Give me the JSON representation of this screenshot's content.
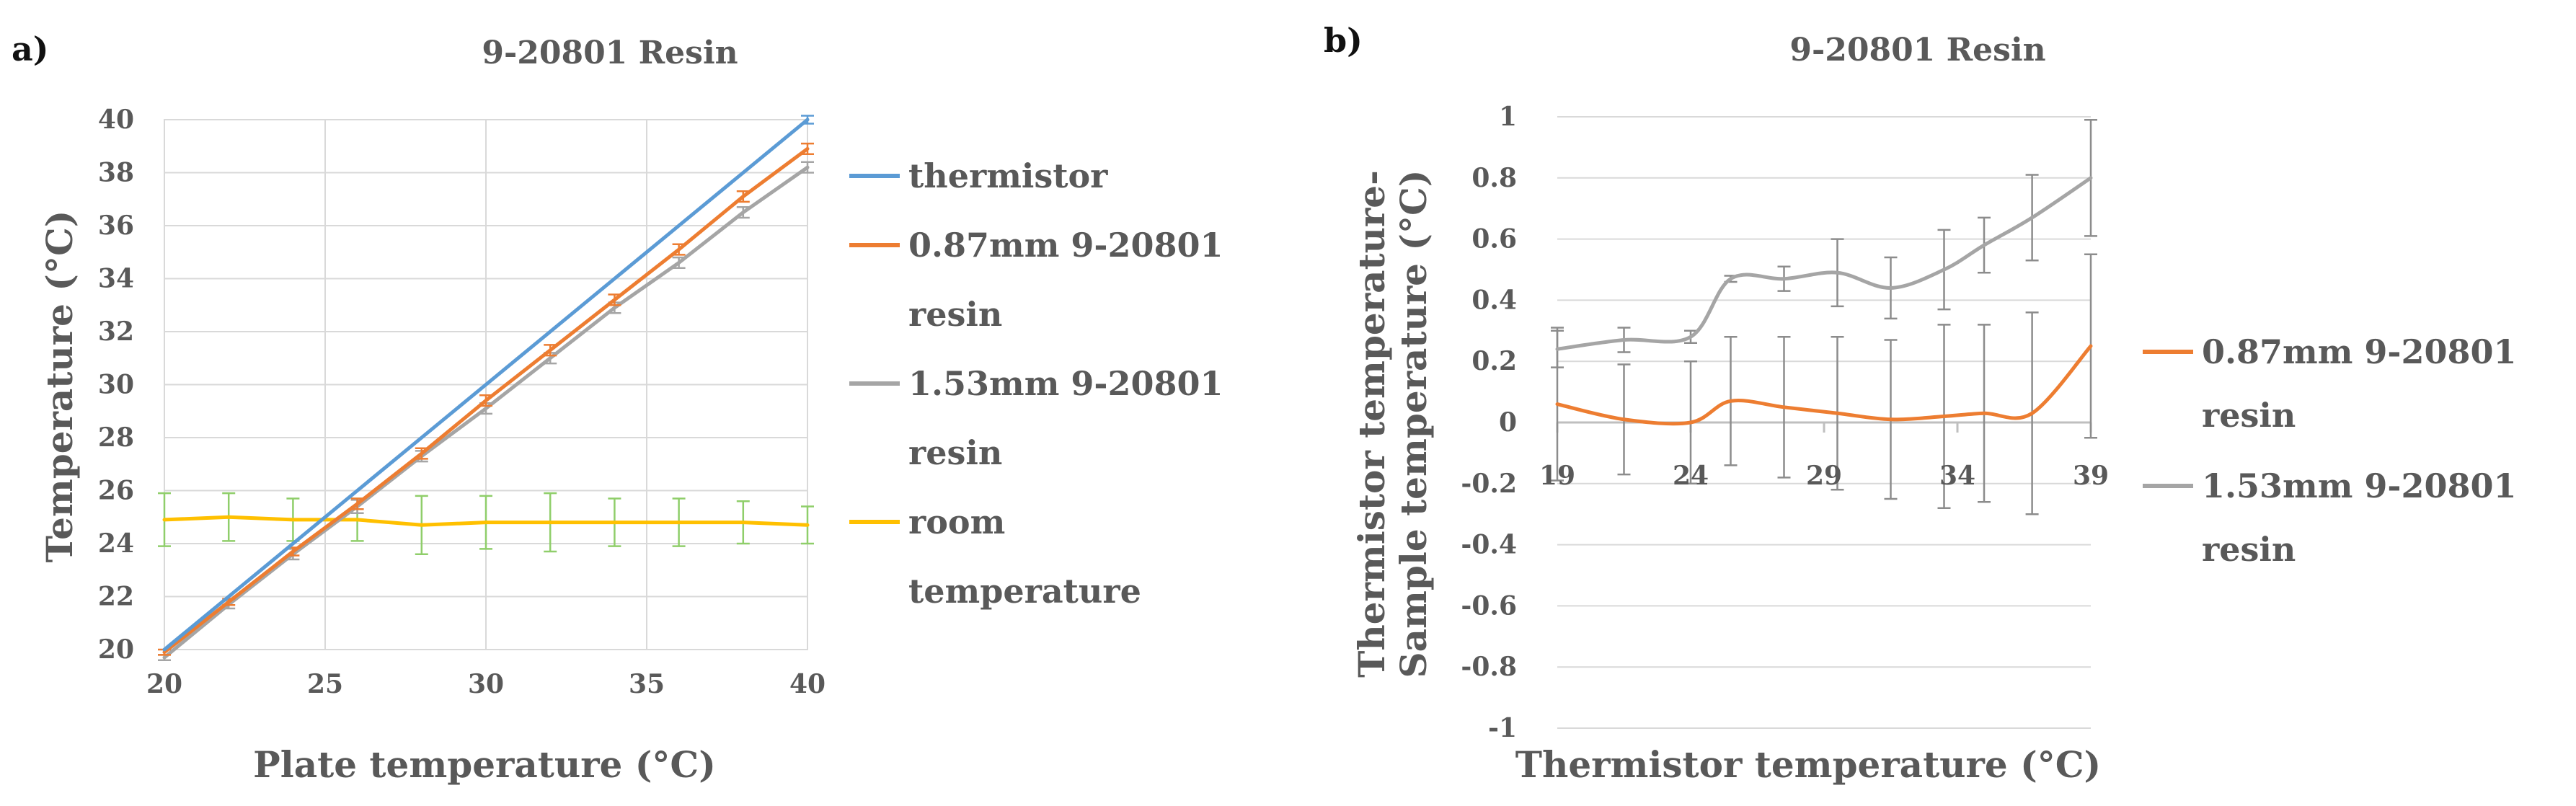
{
  "panel_labels": [
    "a)",
    "b)"
  ],
  "chart_data": [
    {
      "type": "line",
      "panel": "a)",
      "title": "9-20801 Resin",
      "xlabel": "Plate temperature (°C)",
      "ylabel": "Temperature (°C)",
      "xlim": [
        20,
        40
      ],
      "ylim": [
        20,
        40
      ],
      "xticks": [
        20,
        25,
        30,
        35,
        40
      ],
      "yticks": [
        20,
        22,
        24,
        26,
        28,
        30,
        32,
        34,
        36,
        38,
        40
      ],
      "legend_position": "right",
      "series": [
        {
          "name": "thermistor",
          "color": "#5b9bd5",
          "x": [
            20,
            22,
            24,
            26,
            28,
            30,
            32,
            34,
            36,
            38,
            40
          ],
          "y": [
            20.0,
            22.0,
            24.0,
            26.0,
            28.0,
            30.0,
            32.0,
            34.0,
            36.0,
            38.0,
            40.0
          ],
          "err": [
            0,
            0,
            0,
            0,
            0,
            0,
            0,
            0,
            0,
            0,
            0.15
          ]
        },
        {
          "name": "0.87mm 9-20801 resin",
          "color": "#ed7d31",
          "x": [
            20,
            22,
            24,
            26,
            28,
            30,
            32,
            34,
            36,
            38,
            40
          ],
          "y": [
            19.9,
            21.8,
            23.7,
            25.5,
            27.4,
            29.4,
            31.3,
            33.2,
            35.1,
            37.1,
            38.9
          ],
          "err": [
            0.1,
            0.12,
            0.15,
            0.2,
            0.2,
            0.2,
            0.2,
            0.2,
            0.2,
            0.2,
            0.2
          ]
        },
        {
          "name": "1.53mm 9-20801 resin",
          "color": "#a5a5a5",
          "x": [
            20,
            22,
            24,
            26,
            28,
            30,
            32,
            34,
            36,
            38,
            40
          ],
          "y": [
            19.7,
            21.7,
            23.6,
            25.4,
            27.3,
            29.1,
            31.0,
            32.9,
            34.6,
            36.5,
            38.2
          ],
          "err": [
            0.1,
            0.15,
            0.2,
            0.25,
            0.2,
            0.2,
            0.2,
            0.2,
            0.2,
            0.2,
            0.2
          ]
        },
        {
          "name": "room temperature",
          "color": "#ffc000",
          "x": [
            20,
            22,
            24,
            26,
            28,
            30,
            32,
            34,
            36,
            38,
            40
          ],
          "y": [
            24.9,
            25.0,
            24.9,
            24.9,
            24.7,
            24.8,
            24.8,
            24.8,
            24.8,
            24.8,
            24.7
          ],
          "err": [
            1.0,
            0.9,
            0.8,
            0.8,
            1.1,
            1.0,
            1.1,
            0.9,
            0.9,
            0.8,
            0.7
          ],
          "err_color": "#8fce6a"
        }
      ]
    },
    {
      "type": "line",
      "panel": "b)",
      "title": "9-20801 Resin",
      "xlabel": "Thermistor temperature (°C)",
      "ylabel": "Thermistor temperature-Sample temperature (°C)",
      "ylabel_lines": [
        "Thermistor temperature-",
        "Sample temperature (°C)"
      ],
      "xlim": [
        19,
        39
      ],
      "ylim": [
        -1,
        1
      ],
      "xticks": [
        19,
        24,
        29,
        34,
        39
      ],
      "yticks": [
        -1,
        -0.8,
        -0.6,
        -0.4,
        -0.2,
        0,
        0.2,
        0.4,
        0.6,
        0.8,
        1
      ],
      "legend_position": "right",
      "series": [
        {
          "name": "0.87mm 9-20801 resin",
          "color": "#ed7d31",
          "x": [
            19,
            21.5,
            24,
            25.5,
            27.5,
            29.5,
            31.5,
            33.5,
            35,
            36.8,
            39
          ],
          "y": [
            0.06,
            0.01,
            0.0,
            0.07,
            0.05,
            0.03,
            0.01,
            0.02,
            0.03,
            0.03,
            0.25
          ],
          "err": [
            0.25,
            0.18,
            0.2,
            0.21,
            0.23,
            0.25,
            0.26,
            0.3,
            0.29,
            0.33,
            0.3
          ]
        },
        {
          "name": "1.53mm 9-20801 resin",
          "color": "#a5a5a5",
          "x": [
            19,
            21.5,
            24,
            25.5,
            27.5,
            29.5,
            31.5,
            33.5,
            35,
            36.8,
            39
          ],
          "y": [
            0.24,
            0.27,
            0.28,
            0.47,
            0.47,
            0.49,
            0.44,
            0.5,
            0.58,
            0.67,
            0.8
          ],
          "err": [
            0.06,
            0.04,
            0.02,
            0.01,
            0.04,
            0.11,
            0.1,
            0.13,
            0.09,
            0.14,
            0.19
          ]
        }
      ]
    }
  ]
}
